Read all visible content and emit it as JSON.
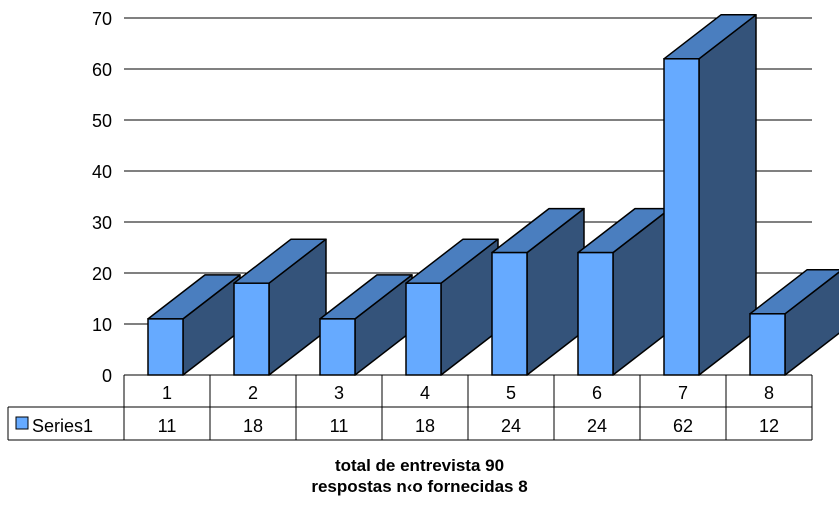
{
  "chart_data": {
    "type": "bar",
    "categories": [
      "1",
      "2",
      "3",
      "4",
      "5",
      "6",
      "7",
      "8"
    ],
    "series": [
      {
        "name": "Series1",
        "values": [
          11,
          18,
          11,
          18,
          24,
          24,
          62,
          12
        ]
      }
    ],
    "ylim": [
      0,
      70
    ],
    "yticks": [
      0,
      10,
      20,
      30,
      40,
      50,
      60,
      70
    ],
    "grid": true,
    "style": "3d",
    "data_table": true,
    "legend": "in data table",
    "annotations": [
      "total de entrevista 90",
      "respostas n‹o fornecidas 8"
    ]
  },
  "colors": {
    "bar_front": "#66aaff",
    "bar_top": "#4a7ebf",
    "bar_side": "#34537a",
    "grid": "#000000"
  }
}
